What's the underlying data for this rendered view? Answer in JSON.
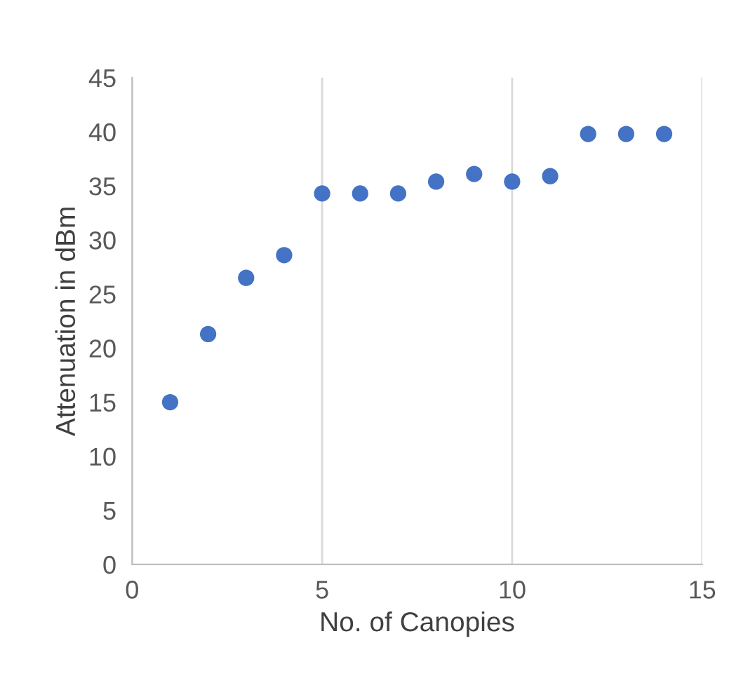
{
  "chart_data": {
    "type": "scatter",
    "xlabel": "No. of Canopies",
    "ylabel": "Attenuation in dBm",
    "x": [
      1,
      2,
      3,
      4,
      5,
      6,
      7,
      8,
      9,
      10,
      11,
      12,
      13,
      14
    ],
    "series": [
      {
        "color": "#4472c4",
        "values": [
          15.0,
          21.3,
          26.5,
          28.6,
          34.3,
          34.3,
          34.3,
          35.4,
          36.1,
          35.4,
          35.9,
          39.8,
          39.8,
          39.8
        ]
      }
    ],
    "xlim": [
      0,
      15
    ],
    "xticks": [
      0,
      5,
      10,
      15
    ],
    "ylim": [
      0,
      45
    ],
    "yticks": [
      0,
      5,
      10,
      15,
      20,
      25,
      30,
      35,
      40,
      45
    ],
    "grid": "x",
    "marker": "circle"
  }
}
